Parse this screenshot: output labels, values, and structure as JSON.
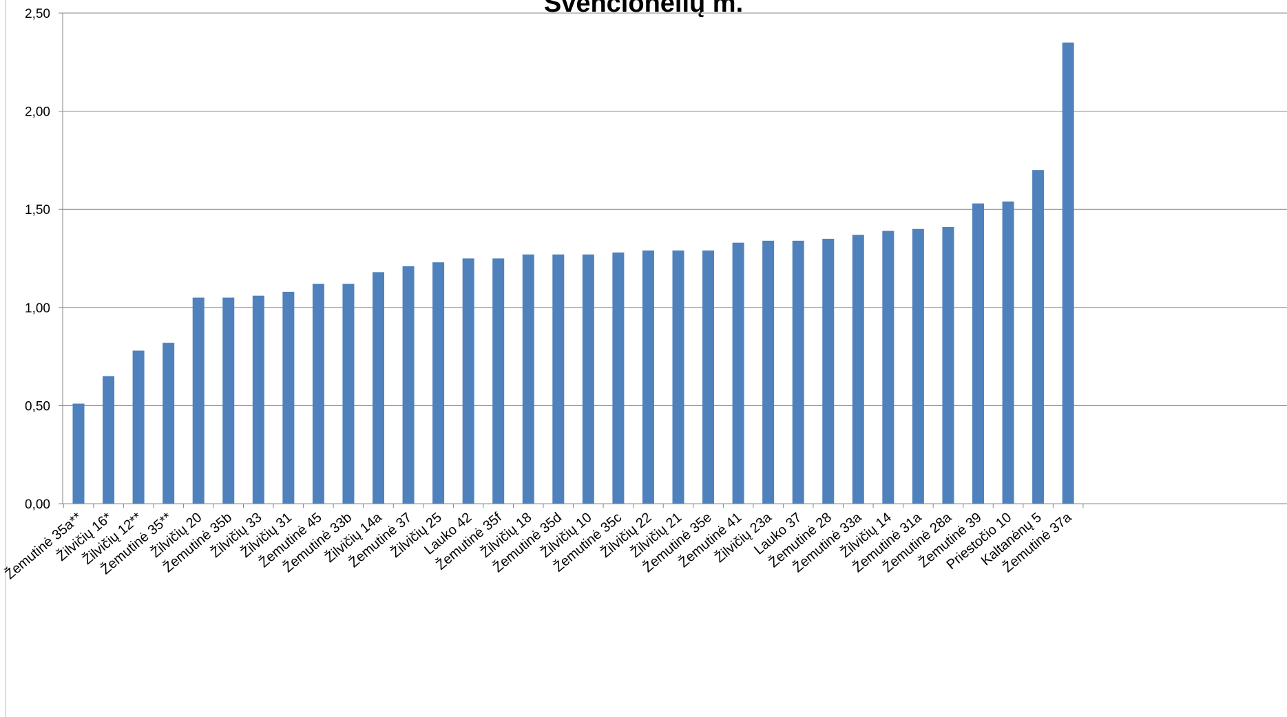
{
  "chart_data": {
    "type": "bar",
    "title": "Švenčionėlių m.",
    "xlabel": "",
    "ylabel": "",
    "ylim": [
      0,
      2.5
    ],
    "yticks": [
      "0,00",
      "0,50",
      "1,00",
      "1,50",
      "2,00",
      "2,50"
    ],
    "grid": true,
    "bar_color": "#4f81bd",
    "categories": [
      "Žemutinė 35a**",
      "Žilvičių 16*",
      "Žilvičių 12**",
      "Žemutinė 35**",
      "Žilvičių 20",
      "Žemutinė 35b",
      "Žilvičių 33",
      "Žilvičių 31",
      "Žemutinė 45",
      "Žemutinė 33b",
      "Žilvičių 14a",
      "Žemutinė 37",
      "Žilvičių 25",
      "Lauko 42",
      "Žemutinė 35f",
      "Žilvičių 18",
      "Žemutinė 35d",
      "Žilvičių 10",
      "Žemutinė 35c",
      "Žilvičių 22",
      "Žilvičių 21",
      "Žemutinė 35e",
      "Žemutinė 41",
      "Žilvičių 23a",
      "Lauko 37",
      "Žemutinė 28",
      "Žemutinė 33a",
      "Žilvičių 14",
      "Žemutinė 31a",
      "Žemutinė 28a",
      "Žemutinė 39",
      "Priestočio 10",
      "Kaltanėnų 5",
      "Žemutinė 37a"
    ],
    "values": [
      0.51,
      0.65,
      0.78,
      0.82,
      1.05,
      1.05,
      1.06,
      1.08,
      1.12,
      1.12,
      1.18,
      1.21,
      1.23,
      1.25,
      1.25,
      1.27,
      1.27,
      1.27,
      1.28,
      1.29,
      1.29,
      1.29,
      1.33,
      1.34,
      1.34,
      1.35,
      1.37,
      1.39,
      1.4,
      1.41,
      1.53,
      1.54,
      1.7,
      2.35
    ]
  }
}
